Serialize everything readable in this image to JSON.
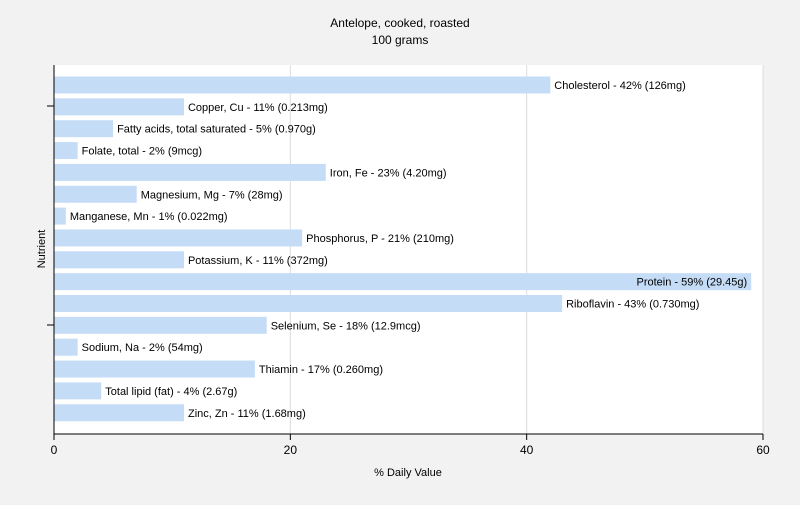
{
  "chart_data": {
    "type": "bar",
    "orientation": "horizontal",
    "title": "Antelope, cooked, roasted",
    "subtitle": "100 grams",
    "xlabel": "% Daily Value",
    "ylabel": "Nutrient",
    "xlim": [
      0,
      60
    ],
    "xticks": [
      0,
      20,
      40,
      60
    ],
    "grid": true,
    "bar_color": "#c5dcf7",
    "categories": [
      "Cholesterol",
      "Copper, Cu",
      "Fatty acids, total saturated",
      "Folate, total",
      "Iron, Fe",
      "Magnesium, Mg",
      "Manganese, Mn",
      "Phosphorus, P",
      "Potassium, K",
      "Protein",
      "Riboflavin",
      "Selenium, Se",
      "Sodium, Na",
      "Thiamin",
      "Total lipid (fat)",
      "Zinc, Zn"
    ],
    "values": [
      42,
      11,
      5,
      2,
      23,
      7,
      1,
      21,
      11,
      59,
      43,
      18,
      2,
      17,
      4,
      11
    ],
    "labels": [
      "Cholesterol - 42% (126mg)",
      "Copper, Cu - 11% (0.213mg)",
      "Fatty acids, total saturated - 5% (0.970g)",
      "Folate, total - 2% (9mcg)",
      "Iron, Fe - 23% (4.20mg)",
      "Magnesium, Mg - 7% (28mg)",
      "Manganese, Mn - 1% (0.022mg)",
      "Phosphorus, P - 21% (210mg)",
      "Potassium, K - 11% (372mg)",
      "Protein - 59% (29.45g)",
      "Riboflavin - 43% (0.730mg)",
      "Selenium, Se - 18% (12.9mcg)",
      "Sodium, Na - 2% (54mg)",
      "Thiamin - 17% (0.260mg)",
      "Total lipid (fat) - 4% (2.67g)",
      "Zinc, Zn - 11% (1.68mg)"
    ]
  }
}
